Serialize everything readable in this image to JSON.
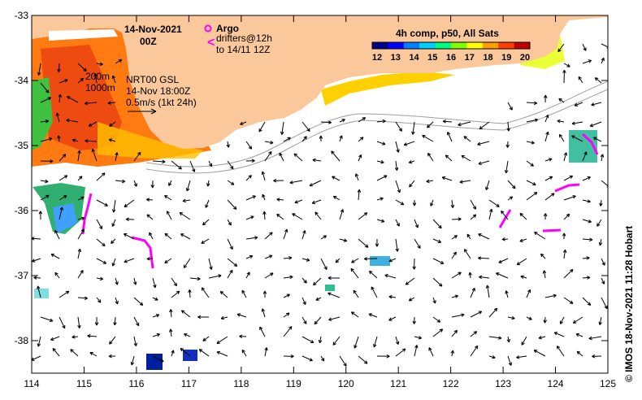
{
  "title": {
    "date": "14-Nov-2021",
    "time": "00Z"
  },
  "legend": {
    "argo_label": "Argo",
    "drifters_line1": "drifters@12h",
    "drifters_line2": "to 14/11 12Z",
    "argo_color": "#ff00ff",
    "drifter_color": "#ff00ff"
  },
  "isobaths": {
    "label_200": "200m",
    "label_1000": "1000m"
  },
  "currents_note": {
    "line1": "NRT00 GSL",
    "line2": "14-Nov 18:00Z",
    "line3": "0.5m/s (1kt 24h)"
  },
  "colorbar": {
    "title": "4h comp, p50, All Sats",
    "ticks": [
      "12",
      "13",
      "14",
      "15",
      "16",
      "17",
      "18",
      "19",
      "20"
    ],
    "colors": [
      "#00008b",
      "#0000ff",
      "#0080ff",
      "#00d0ff",
      "#00ff80",
      "#80ff00",
      "#ffff00",
      "#ffa000",
      "#ff4000",
      "#c00000"
    ]
  },
  "axes": {
    "x_ticks": [
      "114",
      "115",
      "116",
      "117",
      "118",
      "119",
      "120",
      "121",
      "122",
      "123",
      "124",
      "125"
    ],
    "y_ticks": [
      "-33",
      "-34",
      "-35",
      "-36",
      "-37",
      "-38"
    ],
    "lon_range": [
      114,
      125
    ],
    "lat_range": [
      -38.5,
      -33
    ]
  },
  "credit": "© IMOS 18-Nov-2021 11:28 Hobart",
  "colors": {
    "land": "#fac89a",
    "arrow": "#000000",
    "isobath": "#b0b0b0"
  }
}
